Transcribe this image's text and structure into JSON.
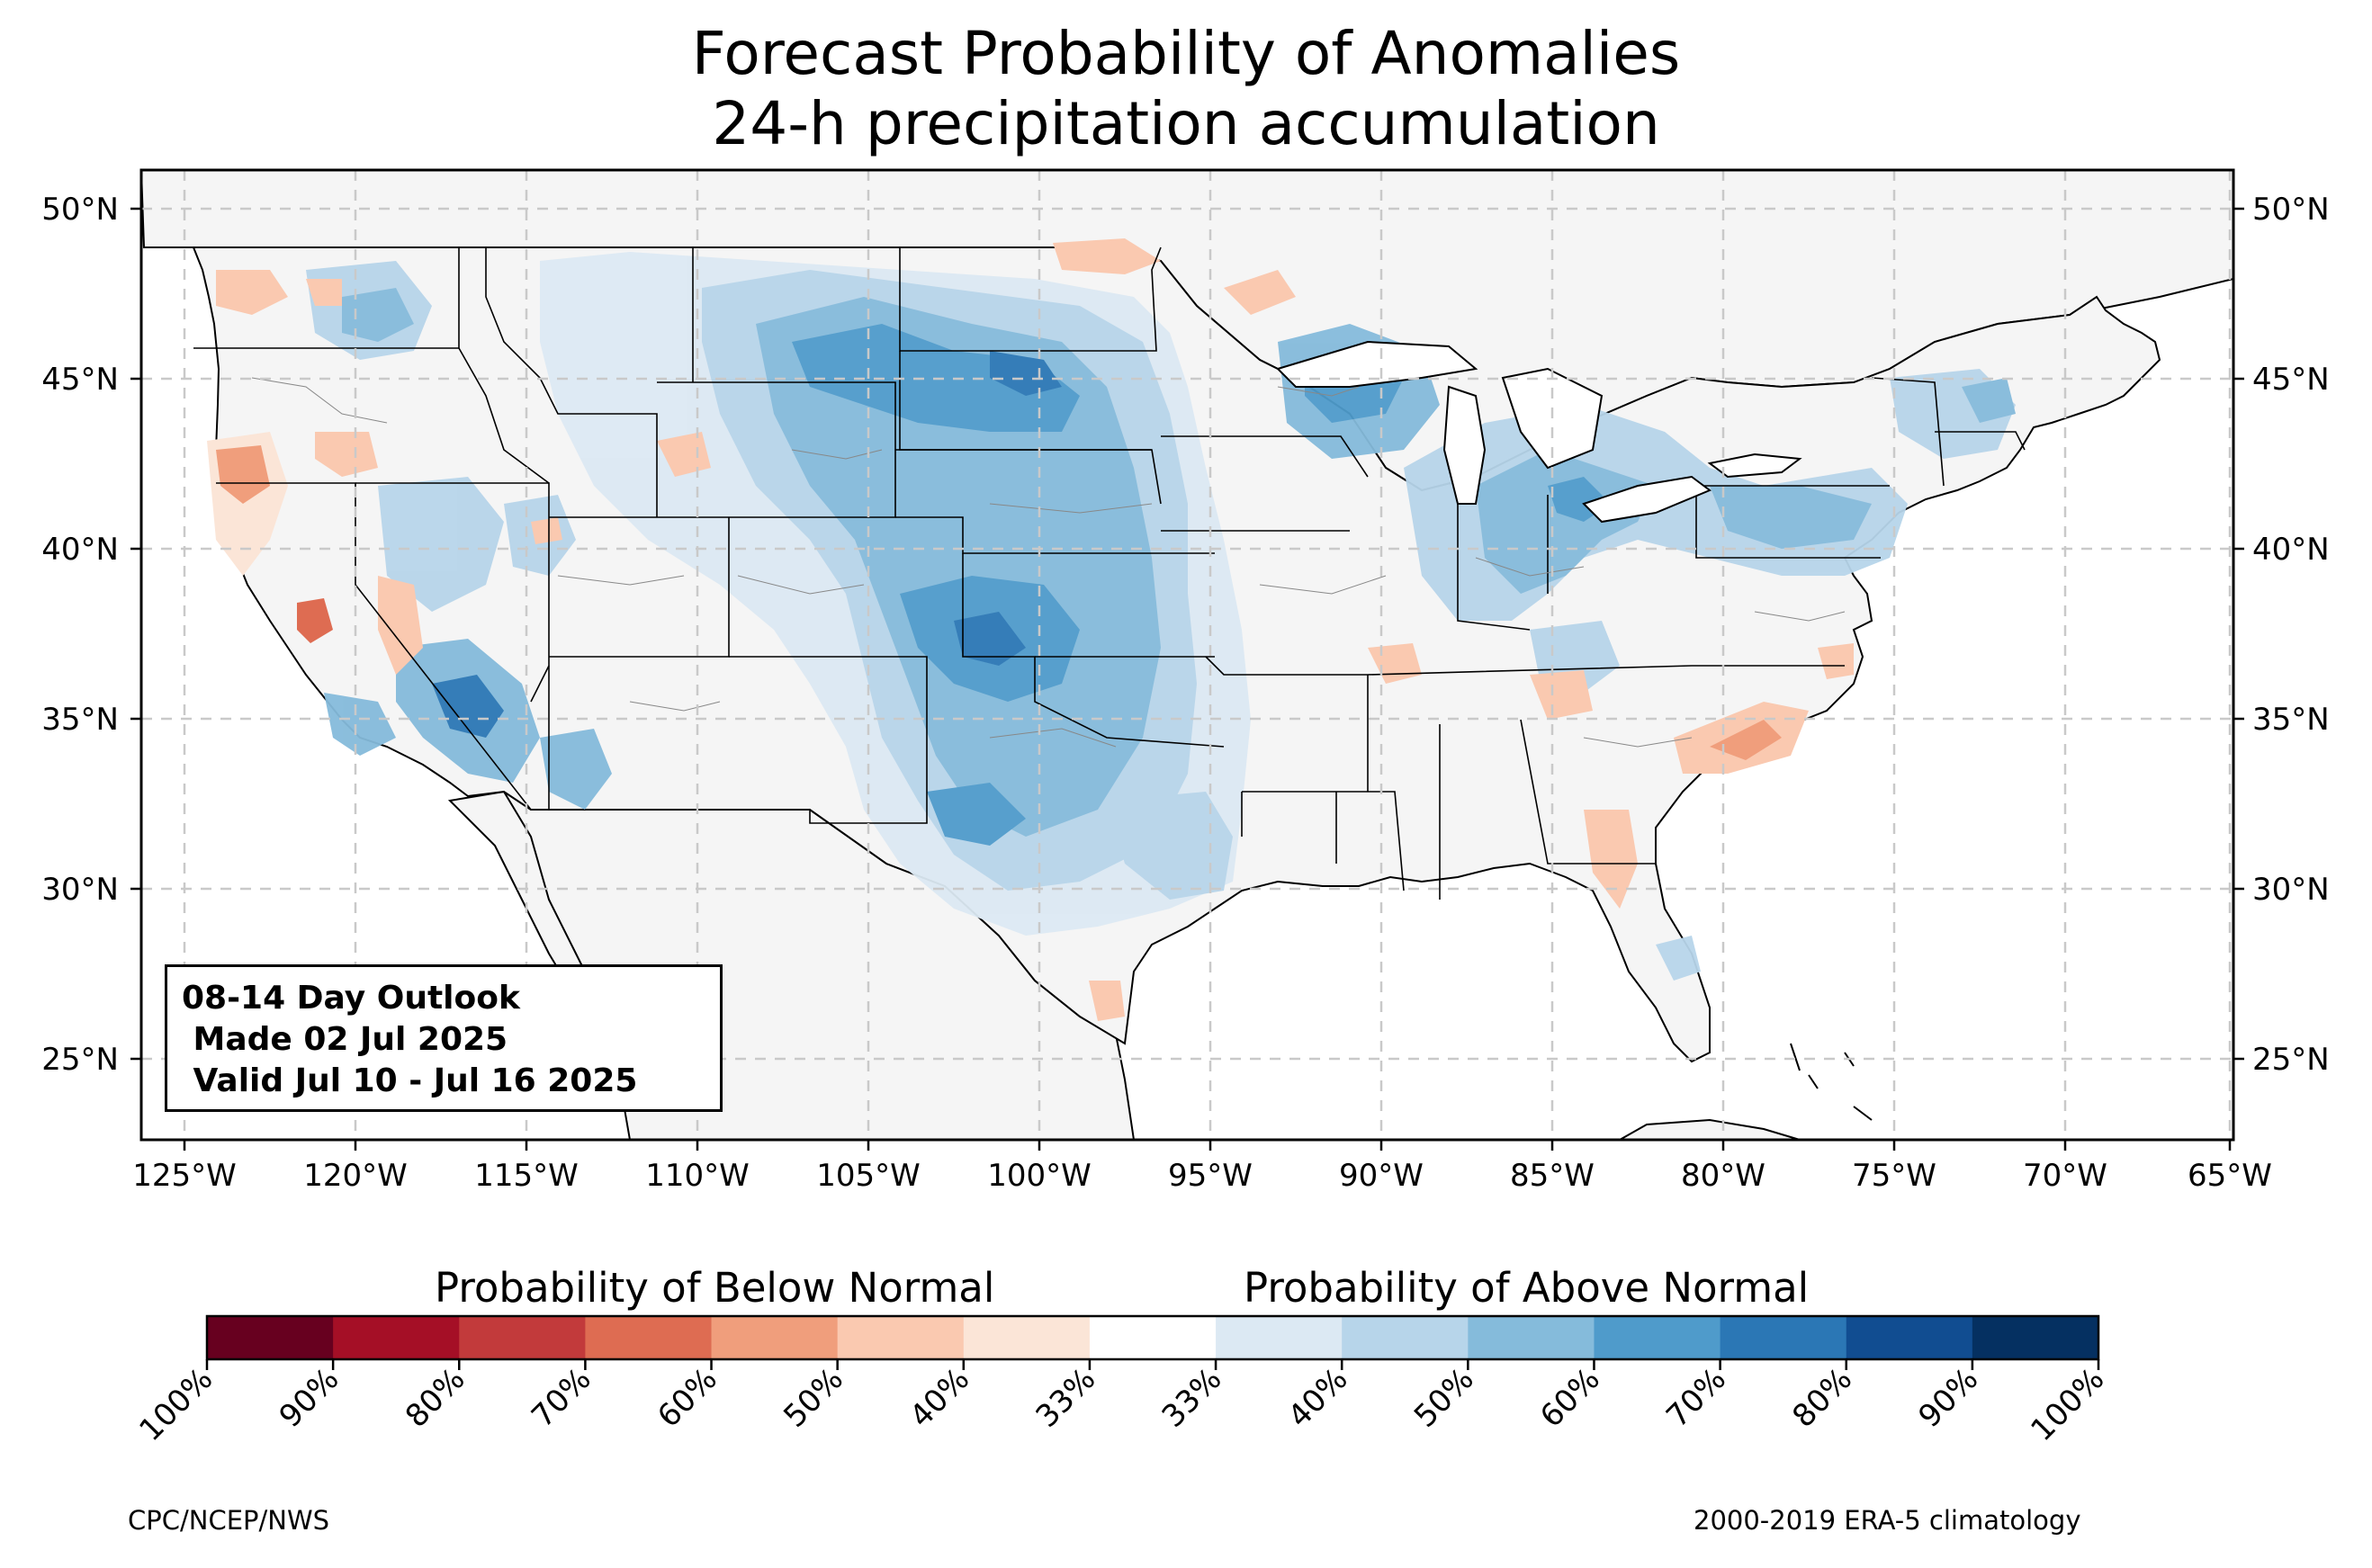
{
  "title": {
    "line1": "Forecast Probability of Anomalies",
    "line2": "24-h precipitation accumulation"
  },
  "map": {
    "lat_labels": [
      "50°N",
      "45°N",
      "40°N",
      "35°N",
      "30°N",
      "25°N"
    ],
    "lon_labels": [
      "125°W",
      "120°W",
      "115°W",
      "110°W",
      "105°W",
      "100°W",
      "95°W",
      "90°W",
      "85°W",
      "80°W",
      "75°W",
      "70°W",
      "65°W"
    ],
    "land_color": "#f5f5f5",
    "grid": true
  },
  "outlook": {
    "line1": "08-14 Day Outlook",
    "line2": " Made 02 Jul 2025",
    "line3": " Valid Jul 10 - Jul 16 2025"
  },
  "colorbar": {
    "below_label": "Probability of Below Normal",
    "above_label": "Probability of Above Normal",
    "tick_labels": [
      "100%",
      "90%",
      "80%",
      "70%",
      "60%",
      "50%",
      "40%",
      "33%",
      "33%",
      "40%",
      "50%",
      "60%",
      "70%",
      "80%",
      "90%",
      "100%"
    ],
    "colors": [
      "#67001f",
      "#a50f26",
      "#c23a3b",
      "#de6c52",
      "#f09e7c",
      "#fac9b0",
      "#fbe5d7",
      "#ffffff",
      "#dce9f3",
      "#b7d5ea",
      "#85bbdb",
      "#4f9bcb",
      "#2b77b5",
      "#114d91",
      "#053061"
    ]
  },
  "footer": {
    "left": "CPC/NCEP/NWS",
    "right": "2000-2019 ERA-5 climatology"
  }
}
